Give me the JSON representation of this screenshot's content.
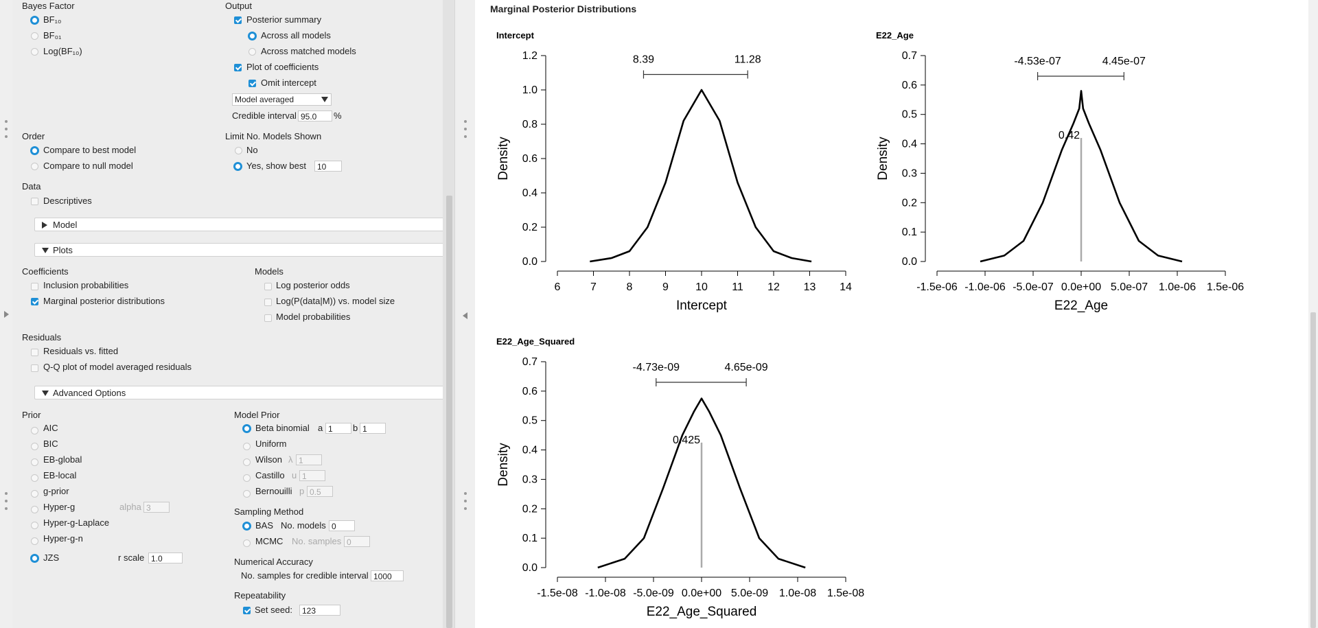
{
  "options": {
    "bayes_factor": {
      "title": "Bayes Factor",
      "items": [
        "BF₁₀",
        "BF₀₁",
        "Log(BF₁₀)"
      ],
      "selected": 0
    },
    "output": {
      "title": "Output",
      "posterior_summary": "Posterior summary",
      "across_all": "Across all models",
      "across_matched": "Across matched models",
      "plot_coef": "Plot of coefficients",
      "omit_intercept": "Omit intercept",
      "model_averaged": "Model averaged",
      "credible_interval_label": "Credible interval",
      "credible_interval_value": "95.0",
      "percent": "%"
    },
    "order": {
      "title": "Order",
      "compare_best": "Compare to best model",
      "compare_null": "Compare to null model"
    },
    "limit": {
      "title": "Limit No. Models Shown",
      "no": "No",
      "yes": "Yes, show best",
      "value": "10"
    },
    "data": {
      "title": "Data",
      "descriptives": "Descriptives"
    },
    "model_section": "Model",
    "plots_section": "Plots",
    "coefficients": {
      "title": "Coefficients",
      "inclusion": "Inclusion probabilities",
      "marginal": "Marginal posterior distributions"
    },
    "models": {
      "title": "Models",
      "log_post_odds": "Log posterior odds",
      "log_p_data": "Log(P(data|M)) vs. model size",
      "model_probs": "Model probabilities"
    },
    "residuals": {
      "title": "Residuals",
      "res_vs_fitted": "Residuals vs. fitted",
      "qq": "Q-Q plot of model averaged residuals"
    },
    "advanced_section": "Advanced Options",
    "prior": {
      "title": "Prior",
      "items": [
        "AIC",
        "BIC",
        "EB-global",
        "EB-local",
        "g-prior",
        "Hyper-g",
        "Hyper-g-Laplace",
        "Hyper-g-n",
        "JZS"
      ],
      "alpha_label": "alpha",
      "alpha_value": "3",
      "rscale_label": "r scale",
      "rscale_value": "1.0"
    },
    "model_prior": {
      "title": "Model Prior",
      "beta_binomial": "Beta binomial",
      "a_label": "a",
      "a_value": "1",
      "b_label": "b",
      "b_value": "1",
      "uniform": "Uniform",
      "wilson": "Wilson",
      "lambda_label": "λ",
      "lambda_value": "1",
      "castillo": "Castillo",
      "u_label": "u",
      "u_value": "1",
      "bernoulli": "Bernouilli",
      "p_label": "p",
      "p_value": "0.5"
    },
    "sampling": {
      "title": "Sampling Method",
      "bas": "BAS",
      "no_models_label": "No. models",
      "no_models_value": "0",
      "mcmc": "MCMC",
      "no_samples_label": "No. samples",
      "no_samples_value": "0"
    },
    "numerical": {
      "title": "Numerical Accuracy",
      "label": "No. samples for credible interval",
      "value": "1000"
    },
    "repeat": {
      "title": "Repeatability",
      "set_seed": "Set seed:",
      "seed_value": "123"
    }
  },
  "results": {
    "title": "Marginal Posterior Distributions"
  },
  "colors": {
    "accent": "#1e8fd6",
    "curve": "#000000",
    "point_mass": "#aaaaaa"
  },
  "chart_data": [
    {
      "type": "line",
      "title": "Intercept",
      "xlabel": "Intercept",
      "ylabel": "Density",
      "xlim": [
        6,
        14
      ],
      "ylim": [
        0,
        1.2
      ],
      "xticks": [
        "6",
        "7",
        "8",
        "9",
        "10",
        "11",
        "12",
        "13",
        "14"
      ],
      "xtick_values": [
        6,
        7,
        8,
        9,
        10,
        11,
        12,
        13,
        14
      ],
      "yticks": [
        "0.0",
        "0.2",
        "0.4",
        "0.6",
        "0.8",
        "1.0",
        "1.2"
      ],
      "ytick_values": [
        0,
        0.2,
        0.4,
        0.6,
        0.8,
        1.0,
        1.2
      ],
      "curve": {
        "x": [
          6.9,
          7.5,
          8.0,
          8.5,
          9.0,
          9.5,
          10.0,
          10.5,
          11.0,
          11.5,
          12.0,
          12.5,
          13.05
        ],
        "y": [
          0.0,
          0.02,
          0.06,
          0.2,
          0.46,
          0.82,
          1.0,
          0.82,
          0.46,
          0.2,
          0.06,
          0.02,
          0.0
        ]
      },
      "ci": {
        "lower": 8.39,
        "upper": 11.28,
        "lower_label": "8.39",
        "upper_label": "11.28",
        "y": 1.09
      },
      "point_mass": null
    },
    {
      "type": "line",
      "title": "E22_Age",
      "xlabel": "E22_Age",
      "ylabel": "Density",
      "xlim": [
        -1.5e-06,
        1.5e-06
      ],
      "ylim": [
        0,
        0.7
      ],
      "xticks": [
        "-1.5e-06",
        "-1.0e-06",
        "-5.0e-07",
        "0.0e+00",
        "5.0e-07",
        "1.0e-06",
        "1.5e-06"
      ],
      "xtick_values": [
        -1.5e-06,
        -1e-06,
        -5e-07,
        0,
        5e-07,
        1e-06,
        1.5e-06
      ],
      "yticks": [
        "0.0",
        "0.1",
        "0.2",
        "0.3",
        "0.4",
        "0.5",
        "0.6",
        "0.7"
      ],
      "ytick_values": [
        0,
        0.1,
        0.2,
        0.3,
        0.4,
        0.5,
        0.6,
        0.7
      ],
      "curve": {
        "x": [
          -1.05e-06,
          -8e-07,
          -6e-07,
          -4e-07,
          -2e-07,
          -8e-08,
          -2e-08,
          0,
          2e-08,
          8e-08,
          2e-07,
          4e-07,
          6e-07,
          8e-07,
          1.05e-06
        ],
        "y": [
          0.0,
          0.02,
          0.07,
          0.2,
          0.38,
          0.47,
          0.52,
          0.58,
          0.52,
          0.47,
          0.38,
          0.2,
          0.07,
          0.02,
          0.0
        ]
      },
      "ci": {
        "lower": -4.53e-07,
        "upper": 4.45e-07,
        "lower_label": "-4.53e-07",
        "upper_label": "4.45e-07",
        "y": 0.63
      },
      "point_mass": {
        "x": 0,
        "value": 0.42,
        "label": "0.42"
      }
    },
    {
      "type": "line",
      "title": "E22_Age_Squared",
      "xlabel": "E22_Age_Squared",
      "ylabel": "Density",
      "xlim": [
        -1.5e-08,
        1.5e-08
      ],
      "ylim": [
        0,
        0.7
      ],
      "xticks": [
        "-1.5e-08",
        "-1.0e-08",
        "-5.0e-09",
        "0.0e+00",
        "5.0e-09",
        "1.0e-08",
        "1.5e-08"
      ],
      "xtick_values": [
        -1.5e-08,
        -1e-08,
        -5e-09,
        0,
        5e-09,
        1e-08,
        1.5e-08
      ],
      "yticks": [
        "0.0",
        "0.1",
        "0.2",
        "0.3",
        "0.4",
        "0.5",
        "0.6",
        "0.7"
      ],
      "ytick_values": [
        0,
        0.1,
        0.2,
        0.3,
        0.4,
        0.5,
        0.6,
        0.7
      ],
      "curve": {
        "x": [
          -1.08e-08,
          -8e-09,
          -6e-09,
          -4e-09,
          -2e-09,
          -8e-10,
          0,
          8e-10,
          2e-09,
          4e-09,
          6e-09,
          8e-09,
          1.08e-08
        ],
        "y": [
          0.0,
          0.03,
          0.1,
          0.27,
          0.45,
          0.53,
          0.575,
          0.53,
          0.45,
          0.27,
          0.1,
          0.03,
          0.0
        ]
      },
      "ci": {
        "lower": -4.73e-09,
        "upper": 4.65e-09,
        "lower_label": "-4.73e-09",
        "upper_label": "4.65e-09",
        "y": 0.63
      },
      "point_mass": {
        "x": 0,
        "value": 0.425,
        "label": "0.425"
      }
    }
  ]
}
